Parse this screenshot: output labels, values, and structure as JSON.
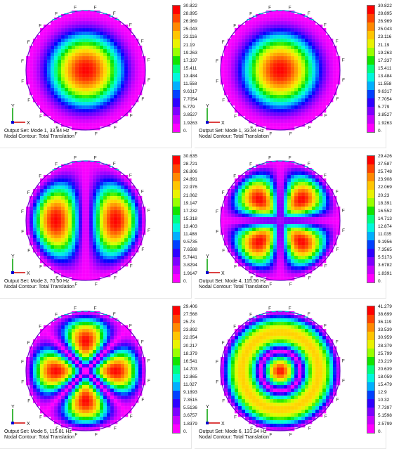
{
  "panels": [
    {
      "caption1": "Output Set: Mode 1, 33.84 Hz",
      "caption2": "Nodal Contour: Total Translation",
      "legend": [
        "30.822",
        "28.895",
        "26.969",
        "25.043",
        "23.116",
        "21.19",
        "19.263",
        "17.337",
        "15.411",
        "13.484",
        "11.558",
        "9.6317",
        "7.7054",
        "5.779",
        "3.8527",
        "1.9263",
        "0."
      ]
    },
    {
      "caption1": "Output Set: Mode 1, 33.84 Hz",
      "caption2": "Nodal Contour: Total Translation",
      "legend": [
        "30.822",
        "28.895",
        "26.969",
        "25.043",
        "23.116",
        "21.19",
        "19.263",
        "17.337",
        "15.411",
        "13.484",
        "11.558",
        "9.6317",
        "7.7054",
        "5.779",
        "3.8527",
        "1.9263",
        "0."
      ]
    },
    {
      "caption1": "Output Set: Mode 3, 70.50 Hz",
      "caption2": "Nodal Contour: Total Translation",
      "legend": [
        "30.635",
        "28.721",
        "26.806",
        "24.891",
        "22.976",
        "21.062",
        "19.147",
        "17.232",
        "15.318",
        "13.403",
        "11.488",
        "9.5735",
        "7.6588",
        "5.7441",
        "3.8294",
        "1.9147",
        "0."
      ]
    },
    {
      "caption1": "Output Set: Mode 4, 115.56 Hz",
      "caption2": "Nodal Contour: Total Translation",
      "legend": [
        "29.426",
        "27.587",
        "25.748",
        "23.908",
        "22.069",
        "20.23",
        "18.391",
        "16.552",
        "14.713",
        "12.874",
        "11.035",
        "9.1956",
        "7.3565",
        "5.5173",
        "3.6782",
        "1.8391",
        "0."
      ]
    },
    {
      "caption1": "Output Set: Mode 5, 115.81 Hz",
      "caption2": "Nodal Contour: Total Translation",
      "legend": [
        "29.406",
        "27.568",
        "25.73",
        "23.892",
        "22.054",
        "20.217",
        "18.379",
        "16.541",
        "14.703",
        "12.865",
        "11.027",
        "9.1893",
        "7.3515",
        "5.5136",
        "3.6757",
        "1.8379",
        "0."
      ]
    },
    {
      "caption1": "Output Set: Mode 6, 131.94 Hz",
      "caption2": "Nodal Contour: Total Translation",
      "legend": [
        "41.279",
        "38.699",
        "36.119",
        "33.539",
        "30.959",
        "28.379",
        "25.799",
        "23.219",
        "20.639",
        "18.059",
        "15.479",
        "12.9",
        "10.32",
        "7.7397",
        "5.1598",
        "2.5799",
        "0."
      ]
    }
  ],
  "triad": {
    "x": "X",
    "y": "Y"
  },
  "edge_label": "F",
  "colors": [
    "#ff0000",
    "#ff3a00",
    "#ff7a00",
    "#ffb000",
    "#ffe000",
    "#d8ff00",
    "#80ff00",
    "#00e000",
    "#00ff80",
    "#00ffd8",
    "#00c8ff",
    "#0070ff",
    "#0000ff",
    "#5000ff",
    "#9000ff",
    "#d000ff",
    "#ff00ff"
  ]
}
